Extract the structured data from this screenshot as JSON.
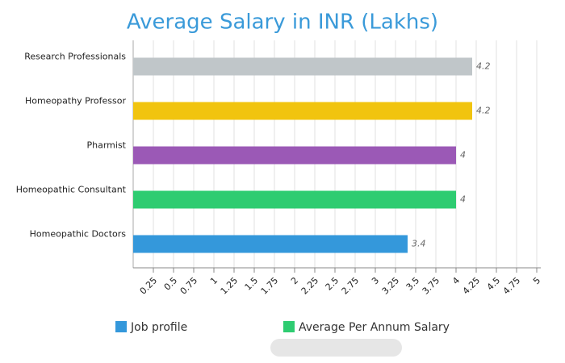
{
  "chart_data": {
    "type": "bar",
    "orientation": "horizontal",
    "title": "Average Salary in INR (Lakhs)",
    "categories": [
      "Research Professionals",
      "Homeopathy Professor",
      "Pharmist",
      "Homeopathic Consultant",
      "Homeopathic Doctors"
    ],
    "values": [
      4.2,
      4.2,
      4,
      4,
      3.4
    ],
    "colors": [
      "#c0c6c9",
      "#f1c40f",
      "#9b59b6",
      "#2ecc71",
      "#3498db"
    ],
    "xlim": [
      0,
      5
    ],
    "xticks": [
      0.25,
      0.5,
      0.75,
      1,
      1.25,
      1.5,
      1.75,
      2,
      2.25,
      2.5,
      2.75,
      3,
      3.25,
      3.5,
      3.75,
      4,
      4.25,
      4.5,
      4.75,
      5
    ],
    "grid": true,
    "legend": [
      {
        "name": "Job profile",
        "color": "#3498db"
      },
      {
        "name": "Average Per Annum Salary",
        "color": "#2ecc71"
      }
    ]
  }
}
